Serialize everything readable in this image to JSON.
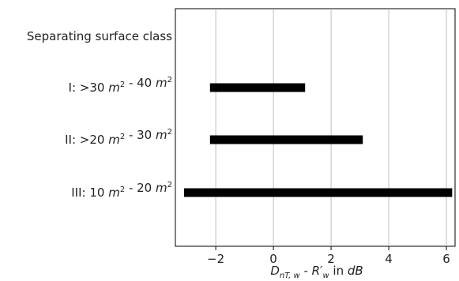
{
  "chart_data": {
    "type": "bar",
    "orientation": "horizontal",
    "header_label": "Separating surface class",
    "categories": [
      {
        "prefix": "I: >30 ",
        "lo": "30",
        "hi": "40"
      },
      {
        "prefix": "II: >20 ",
        "lo": "20",
        "hi": "30"
      },
      {
        "prefix": "III: 10 ",
        "lo": "10",
        "hi": "20"
      }
    ],
    "category_labels_plain": [
      "I: >30 m2 - 40 m2",
      "II: >20 m2 - 30 m2",
      "III: 10 m2 - 20 m2"
    ],
    "ranges": [
      [
        -2.2,
        1.1
      ],
      [
        -2.2,
        3.1
      ],
      [
        -3.1,
        6.2
      ]
    ],
    "xlim": [
      -3.4,
      6.3
    ],
    "xticks": [
      -2,
      0,
      2,
      4,
      6
    ],
    "xtick_labels": [
      "−2",
      "0",
      "2",
      "4",
      "6"
    ],
    "xlabel": "D_nT,w - R'_w in dB",
    "grid": "vertical",
    "bar_color": "#000000"
  }
}
